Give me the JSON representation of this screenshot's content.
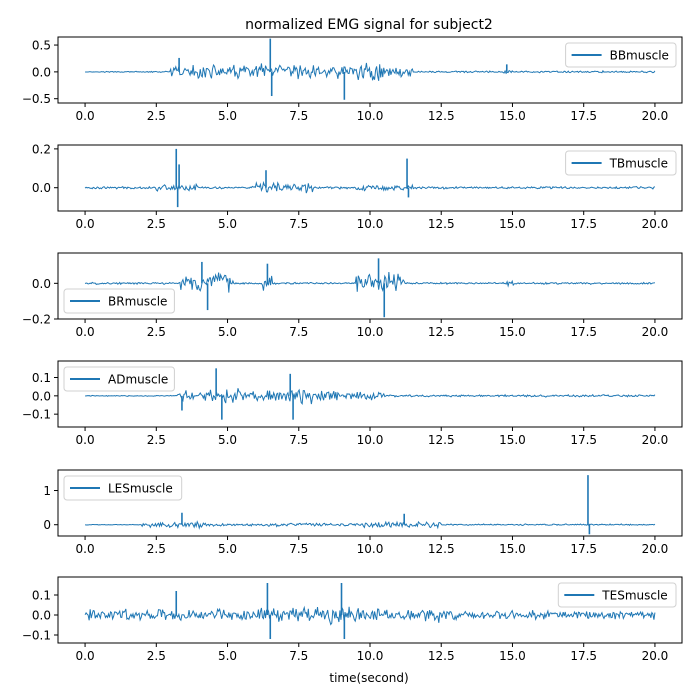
{
  "chart_data": [
    {
      "type": "line",
      "title": "normalized EMG signal for subject2",
      "xlabel": "",
      "xlim": [
        -0.95,
        20.95
      ],
      "ylim": [
        -0.58,
        0.65
      ],
      "xticks": [
        0.0,
        2.5,
        5.0,
        7.5,
        10.0,
        12.5,
        15.0,
        17.5,
        20.0
      ],
      "xtick_labels": [
        "0.0",
        "2.5",
        "5.0",
        "7.5",
        "10.0",
        "12.5",
        "15.0",
        "17.5",
        "20.0"
      ],
      "yticks": [
        -0.5,
        0.0,
        0.5
      ],
      "ytick_labels": [
        "−0.5",
        "0.0",
        "0.5"
      ],
      "legend": "top-right",
      "series": [
        {
          "name": "BBmuscle",
          "color": "#1f77b4",
          "duration": 20.0,
          "baseline": 0.007,
          "bursts": [
            [
              0.5,
              20,
              0.012
            ],
            [
              3.0,
              6.3,
              0.14
            ],
            [
              5.5,
              7.0,
              0.18
            ],
            [
              7.0,
              9.0,
              0.15
            ],
            [
              9.0,
              10.5,
              0.2
            ],
            [
              10.5,
              11.5,
              0.1
            ],
            [
              14.6,
              15.0,
              0.05
            ],
            [
              11.5,
              20,
              0.02
            ]
          ],
          "x": [
            3.3,
            6.5,
            6.55,
            9.1,
            14.8
          ],
          "y": [
            0.26,
            0.62,
            -0.45,
            -0.52,
            0.14
          ]
        }
      ]
    },
    {
      "type": "line",
      "title": "",
      "xlabel": "",
      "xlim": [
        -0.95,
        20.95
      ],
      "ylim": [
        -0.12,
        0.22
      ],
      "xticks": [
        0.0,
        2.5,
        5.0,
        7.5,
        10.0,
        12.5,
        15.0,
        17.5,
        20.0
      ],
      "xtick_labels": [
        "0.0",
        "2.5",
        "5.0",
        "7.5",
        "10.0",
        "12.5",
        "15.0",
        "17.5",
        "20.0"
      ],
      "yticks": [
        0.0,
        0.2
      ],
      "ytick_labels": [
        "0.0",
        "0.2"
      ],
      "legend": "top-right",
      "series": [
        {
          "name": "TBmuscle",
          "color": "#1f77b4",
          "duration": 20.0,
          "baseline": 0.004,
          "bursts": [
            [
              0,
              20,
              0.007
            ],
            [
              2.5,
              4.0,
              0.022
            ],
            [
              6.0,
              8.0,
              0.028
            ],
            [
              9.5,
              11.5,
              0.02
            ]
          ],
          "x": [
            3.2,
            3.25,
            3.3,
            6.35,
            11.3,
            11.35
          ],
          "y": [
            0.2,
            -0.1,
            0.12,
            0.09,
            0.15,
            -0.05
          ]
        }
      ]
    },
    {
      "type": "line",
      "title": "",
      "xlabel": "",
      "xlim": [
        -0.95,
        20.95
      ],
      "ylim": [
        -0.2,
        0.17
      ],
      "xticks": [
        0.0,
        2.5,
        5.0,
        7.5,
        10.0,
        12.5,
        15.0,
        17.5,
        20.0
      ],
      "xtick_labels": [
        "0.0",
        "2.5",
        "5.0",
        "7.5",
        "10.0",
        "12.5",
        "15.0",
        "17.5",
        "20.0"
      ],
      "yticks": [
        -0.2,
        0.0
      ],
      "ytick_labels": [
        "−0.2",
        "0.0"
      ],
      "legend": "bottom-left",
      "series": [
        {
          "name": "BRmuscle",
          "color": "#1f77b4",
          "duration": 20.0,
          "baseline": 0.003,
          "bursts": [
            [
              3.3,
              5.2,
              0.065
            ],
            [
              6.2,
              6.7,
              0.05
            ],
            [
              9.5,
              11.2,
              0.07
            ],
            [
              14.8,
              15.2,
              0.018
            ],
            [
              0,
              20,
              0.006
            ]
          ],
          "x": [
            4.1,
            4.3,
            6.4,
            10.3,
            10.5
          ],
          "y": [
            0.12,
            -0.15,
            0.11,
            0.14,
            -0.19
          ]
        }
      ]
    },
    {
      "type": "line",
      "title": "",
      "xlabel": "",
      "xlim": [
        -0.95,
        20.95
      ],
      "ylim": [
        -0.17,
        0.19
      ],
      "xticks": [
        0.0,
        2.5,
        5.0,
        7.5,
        10.0,
        12.5,
        15.0,
        17.5,
        20.0
      ],
      "xtick_labels": [
        "0.0",
        "2.5",
        "5.0",
        "7.5",
        "10.0",
        "12.5",
        "15.0",
        "17.5",
        "20.0"
      ],
      "yticks": [
        -0.1,
        0.0,
        0.1
      ],
      "ytick_labels": [
        "−0.1",
        "0.0",
        "0.1"
      ],
      "legend": "top-left",
      "series": [
        {
          "name": "ADmuscle",
          "color": "#1f77b4",
          "duration": 20.0,
          "baseline": 0.003,
          "bursts": [
            [
              3.2,
              3.8,
              0.03
            ],
            [
              4.0,
              5.5,
              0.05
            ],
            [
              5.5,
              7.0,
              0.035
            ],
            [
              7.0,
              8.0,
              0.05
            ],
            [
              8.0,
              10.5,
              0.03
            ],
            [
              10.5,
              20,
              0.007
            ]
          ],
          "x": [
            4.6,
            4.8,
            7.2,
            7.3,
            3.4
          ],
          "y": [
            0.15,
            -0.13,
            0.12,
            -0.13,
            -0.08
          ]
        }
      ]
    },
    {
      "type": "line",
      "title": "",
      "xlabel": "",
      "xlim": [
        -0.95,
        20.95
      ],
      "ylim": [
        -0.33,
        1.6
      ],
      "xticks": [
        0.0,
        2.5,
        5.0,
        7.5,
        10.0,
        12.5,
        15.0,
        17.5,
        20.0
      ],
      "xtick_labels": [
        "0.0",
        "2.5",
        "5.0",
        "7.5",
        "10.0",
        "12.5",
        "15.0",
        "17.5",
        "20.0"
      ],
      "yticks": [
        0,
        1
      ],
      "ytick_labels": [
        "0",
        "1"
      ],
      "legend": "top-left",
      "series": [
        {
          "name": "LESmuscle",
          "color": "#1f77b4",
          "duration": 20.0,
          "baseline": 0.01,
          "bursts": [
            [
              2.0,
              4.2,
              0.11
            ],
            [
              4.2,
              6.0,
              0.05
            ],
            [
              6.0,
              8.0,
              0.06
            ],
            [
              8.0,
              9.6,
              0.05
            ],
            [
              9.6,
              12.5,
              0.1
            ],
            [
              12.5,
              20,
              0.025
            ]
          ],
          "x": [
            17.65,
            17.7,
            3.4,
            11.2
          ],
          "y": [
            1.45,
            -0.28,
            0.35,
            0.32
          ]
        }
      ]
    },
    {
      "type": "line",
      "title": "",
      "xlabel": "time(second)",
      "xlim": [
        -0.95,
        20.95
      ],
      "ylim": [
        -0.14,
        0.19
      ],
      "xticks": [
        0.0,
        2.5,
        5.0,
        7.5,
        10.0,
        12.5,
        15.0,
        17.5,
        20.0
      ],
      "xtick_labels": [
        "0.0",
        "2.5",
        "5.0",
        "7.5",
        "10.0",
        "12.5",
        "15.0",
        "17.5",
        "20.0"
      ],
      "yticks": [
        -0.1,
        0.0,
        0.1
      ],
      "ytick_labels": [
        "−0.1",
        "0.0",
        "0.1"
      ],
      "legend": "top-right",
      "series": [
        {
          "name": "TESmuscle",
          "color": "#1f77b4",
          "duration": 20.0,
          "baseline": 0.02,
          "bursts": [
            [
              0,
              3.5,
              0.035
            ],
            [
              3.5,
              6.0,
              0.035
            ],
            [
              6.0,
              10.0,
              0.05
            ],
            [
              10.0,
              12.5,
              0.04
            ],
            [
              12.5,
              20,
              0.025
            ]
          ],
          "x": [
            6.4,
            6.5,
            9.0,
            9.1,
            3.2
          ],
          "y": [
            0.16,
            -0.12,
            0.16,
            -0.12,
            0.12
          ]
        }
      ]
    }
  ]
}
